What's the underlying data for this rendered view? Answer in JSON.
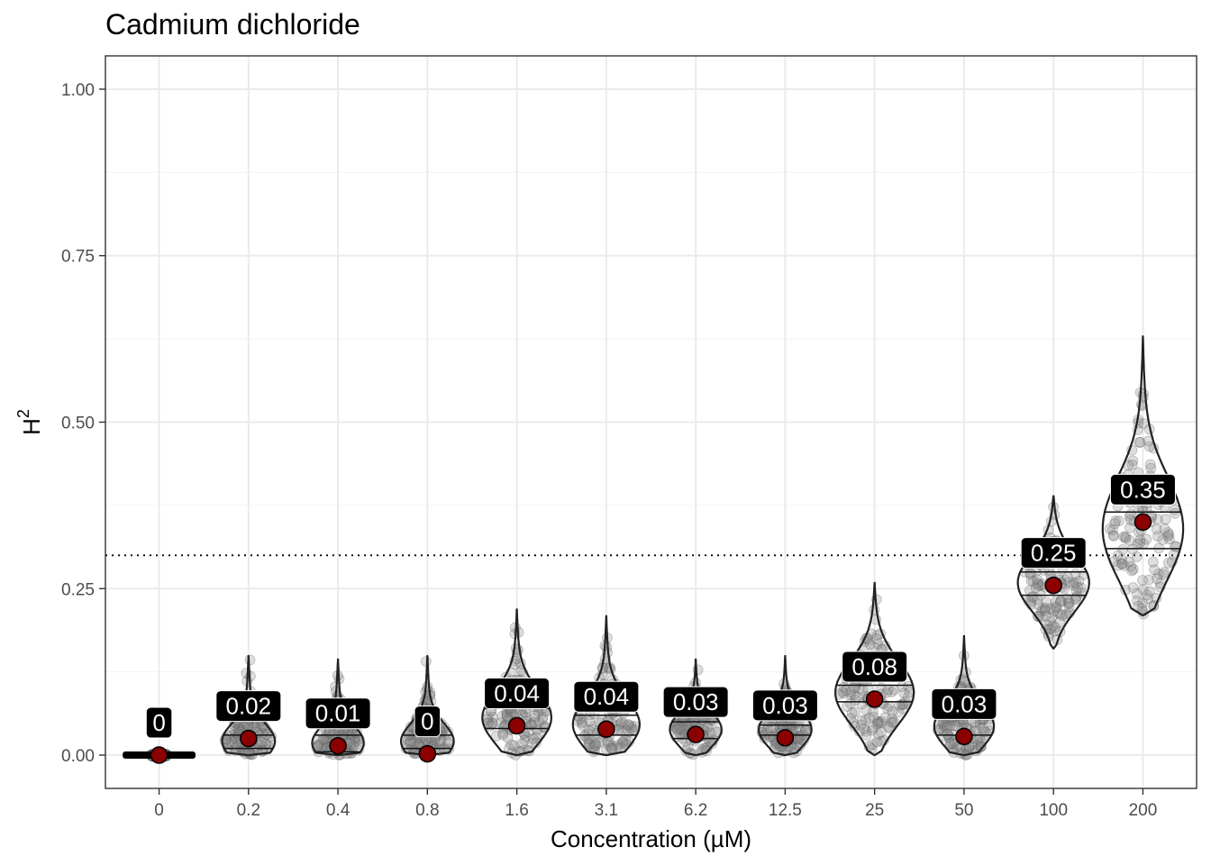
{
  "chart_data": {
    "type": "violin",
    "title": "Cadmium dichloride",
    "xlabel": "Concentration (µM)",
    "ylabel": "H",
    "ylabel_superscript": "2",
    "categories": [
      "0",
      "0.2",
      "0.4",
      "0.8",
      "1.6",
      "3.1",
      "6.2",
      "12.5",
      "25",
      "50",
      "100",
      "200"
    ],
    "yticks": [
      "0.00",
      "0.25",
      "0.50",
      "0.75",
      "1.00"
    ],
    "ytick_values": [
      0,
      0.25,
      0.5,
      0.75,
      1.0
    ],
    "ylim": [
      -0.05,
      1.05
    ],
    "reference_line": 0.3,
    "grid": true,
    "colors": {
      "point": "#8b0000",
      "violin_outline": "#222222",
      "jitter": "#888888",
      "label_bg": "#000000",
      "label_text": "#ffffff",
      "grid": "#ebebeb"
    },
    "groups": [
      {
        "category": "0",
        "mean": 0.0,
        "label": "0",
        "min": -0.002,
        "max": 0.002,
        "q1": 0.0,
        "q3": 0.0
      },
      {
        "category": "0.2",
        "mean": 0.025,
        "label": "0.02",
        "min": 0.0,
        "max": 0.15,
        "q1": 0.01,
        "q3": 0.03
      },
      {
        "category": "0.4",
        "mean": 0.014,
        "label": "0.01",
        "min": 0.0,
        "max": 0.145,
        "q1": 0.005,
        "q3": 0.03
      },
      {
        "category": "0.8",
        "mean": 0.002,
        "label": "0",
        "min": 0.0,
        "max": 0.15,
        "q1": 0.01,
        "q3": 0.03
      },
      {
        "category": "1.6",
        "mean": 0.044,
        "label": "0.04",
        "min": 0.0,
        "max": 0.22,
        "q1": 0.04,
        "q3": 0.07
      },
      {
        "category": "3.1",
        "mean": 0.039,
        "label": "0.04",
        "min": 0.0,
        "max": 0.21,
        "q1": 0.03,
        "q3": 0.06
      },
      {
        "category": "6.2",
        "mean": 0.031,
        "label": "0.03",
        "min": 0.0,
        "max": 0.145,
        "q1": 0.025,
        "q3": 0.05
      },
      {
        "category": "12.5",
        "mean": 0.026,
        "label": "0.03",
        "min": 0.0,
        "max": 0.15,
        "q1": 0.03,
        "q3": 0.045
      },
      {
        "category": "25",
        "mean": 0.084,
        "label": "0.08",
        "min": 0.0,
        "max": 0.26,
        "q1": 0.08,
        "q3": 0.105
      },
      {
        "category": "50",
        "mean": 0.028,
        "label": "0.03",
        "min": 0.0,
        "max": 0.18,
        "q1": 0.03,
        "q3": 0.055
      },
      {
        "category": "100",
        "mean": 0.255,
        "label": "0.25",
        "min": 0.16,
        "max": 0.39,
        "q1": 0.24,
        "q3": 0.275
      },
      {
        "category": "200",
        "mean": 0.35,
        "label": "0.35",
        "min": 0.21,
        "max": 0.63,
        "q1": 0.31,
        "q3": 0.365
      }
    ]
  }
}
